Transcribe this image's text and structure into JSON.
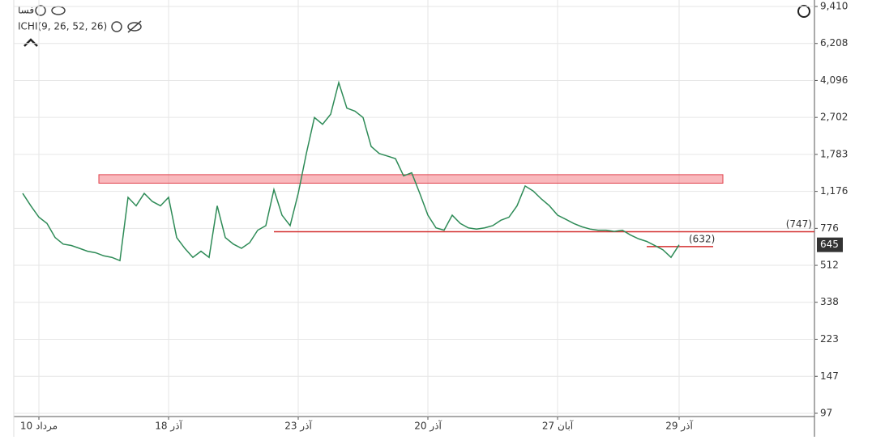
{
  "chart_data": {
    "type": "line",
    "symbol": "فسا",
    "indicator": "ICHI(9, 26, 52, 26)",
    "log_y": true,
    "grid": true,
    "categories": [
      null,
      null,
      "10 مرداد",
      null,
      null,
      null,
      null,
      null,
      null,
      null,
      null,
      null,
      null,
      null,
      null,
      null,
      null,
      null,
      "آذر 18",
      null,
      null,
      null,
      null,
      null,
      null,
      null,
      null,
      null,
      null,
      null,
      null,
      null,
      null,
      null,
      "آذر 23",
      null,
      null,
      null,
      null,
      null,
      null,
      null,
      null,
      null,
      null,
      null,
      null,
      null,
      null,
      null,
      "آذر 20",
      null,
      null,
      null,
      null,
      null,
      null,
      null,
      null,
      null,
      null,
      null,
      null,
      null,
      null,
      null,
      "آبان 27",
      null,
      null,
      null,
      null,
      null,
      null,
      null,
      null,
      null,
      null,
      null,
      null,
      null,
      null,
      "آذر 29"
    ],
    "series": [
      {
        "color": "#2e8b57",
        "values": [
          1150,
          1000,
          880,
          820,
          700,
          650,
          640,
          620,
          600,
          590,
          570,
          560,
          540,
          1100,
          1000,
          1150,
          1050,
          1000,
          1100,
          700,
          620,
          560,
          600,
          560,
          1000,
          700,
          650,
          620,
          660,
          760,
          800,
          1200,
          900,
          800,
          1150,
          1800,
          2700,
          2500,
          2800,
          4000,
          3000,
          2900,
          2700,
          1950,
          1800,
          1750,
          1700,
          1400,
          1450,
          1150,
          900,
          780,
          760,
          900,
          820,
          780,
          770,
          780,
          800,
          850,
          880,
          1000,
          1250,
          1180,
          1080,
          1000,
          900,
          860,
          820,
          790,
          770,
          760,
          760,
          750,
          760,
          720,
          690,
          670,
          640,
          610,
          560,
          645
        ]
      }
    ],
    "ylim": [
      93.5,
      10120
    ],
    "yticks": [
      97,
      147,
      223,
      338,
      512,
      776,
      {
        "value": 1176,
        "label": "1,176"
      },
      {
        "value": 1783,
        "label": "1,783"
      },
      {
        "value": 2702,
        "label": "2,702"
      },
      {
        "value": 4096,
        "label": "4,096"
      },
      {
        "value": 6208,
        "label": "6,208"
      },
      {
        "value": 9410,
        "label": "9,410"
      }
    ],
    "zone": [
      1290,
      1420
    ],
    "levels": [
      {
        "value": 747,
        "label": "(747)"
      },
      {
        "value": 632,
        "label": "(632)"
      }
    ],
    "last_price": 645
  }
}
